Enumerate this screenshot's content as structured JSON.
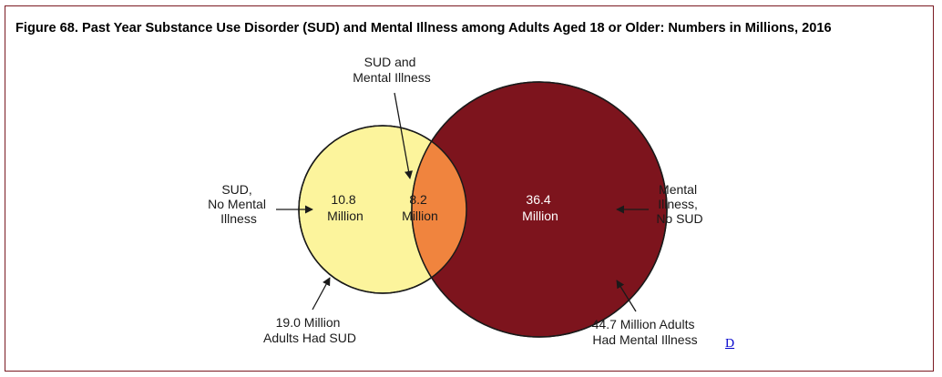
{
  "figure": {
    "title": "Figure 68. Past Year Substance Use Disorder (SUD) and Mental Illness among Adults Aged 18 or Older: Numbers in Millions, 2016"
  },
  "colors": {
    "sud_only": "#fcf49c",
    "overlap": "#f0843e",
    "mental_illness": "#7d141d",
    "frame": "#7a1a22"
  },
  "venn": {
    "sud_circle": {
      "total_label": [
        "19.0 Million",
        "Adults Had SUD"
      ],
      "only_value": [
        "10.8",
        "Million"
      ],
      "only_label": [
        "SUD,",
        "No Mental",
        "Illness"
      ]
    },
    "mi_circle": {
      "total_label": [
        "44.7 Million Adults",
        "Had Mental Illness"
      ],
      "only_value": [
        "36.4",
        "Million"
      ],
      "only_label": [
        "Mental",
        "Illness,",
        "No SUD"
      ]
    },
    "overlap": {
      "value": [
        "8.2",
        "Million"
      ],
      "label": [
        "SUD and",
        "Mental Illness"
      ]
    }
  },
  "link": {
    "text": "D"
  }
}
